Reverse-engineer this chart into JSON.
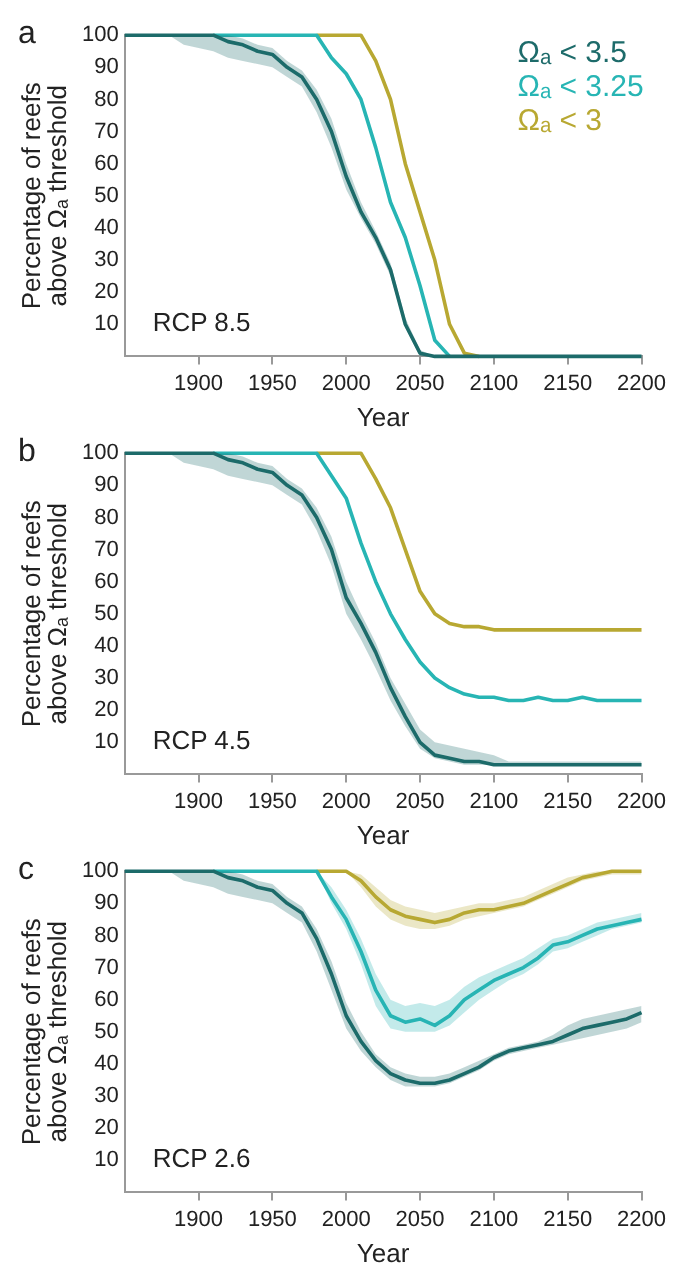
{
  "chart_data": [
    {
      "type": "line",
      "xlabel": "Year",
      "ylabel": "Percentage of reefs\nabove Ωₐ threshold",
      "annotations": [
        "a",
        "RCP 8.5"
      ],
      "legend": "top right",
      "grid": false,
      "xlim": [
        1850,
        2200
      ],
      "xticks": [
        1900,
        1950,
        2000,
        2050,
        2100,
        2150,
        2200
      ],
      "ylim": [
        0,
        100
      ],
      "yticks": [
        10,
        20,
        30,
        40,
        50,
        60,
        70,
        80,
        90,
        100
      ],
      "x": [
        1850,
        1860,
        1870,
        1880,
        1890,
        1900,
        1910,
        1920,
        1930,
        1940,
        1950,
        1960,
        1970,
        1980,
        1990,
        2000,
        2010,
        2020,
        2030,
        2040,
        2050,
        2060,
        2070,
        2080,
        2090,
        2100,
        2110,
        2120,
        2130,
        2140,
        2150,
        2160,
        2170,
        2180,
        2190,
        2200
      ],
      "series": [
        {
          "name": "Ωₐ < 3.5",
          "color": "#1d6b6a",
          "values": [
            100,
            100,
            100,
            100,
            100,
            100,
            100,
            98,
            97,
            95,
            94,
            90,
            87,
            80,
            70,
            56,
            45,
            37,
            27,
            10,
            1,
            0,
            0,
            0,
            0,
            0,
            0,
            0,
            0,
            0,
            0,
            0,
            0,
            0,
            0,
            0
          ],
          "lower": [
            100,
            100,
            100,
            100,
            97,
            96,
            95,
            93,
            92,
            91,
            90,
            87,
            84,
            76,
            65,
            52,
            43,
            35,
            25,
            9,
            0,
            0,
            0,
            0,
            0,
            0,
            0,
            0,
            0,
            0,
            0,
            0,
            0,
            0,
            0,
            0
          ],
          "upper": [
            100,
            100,
            100,
            100,
            100,
            100,
            100,
            100,
            99,
            97,
            96,
            92,
            89,
            83,
            74,
            60,
            48,
            39,
            29,
            12,
            2,
            0,
            0,
            0,
            0,
            0,
            0,
            0,
            0,
            0,
            0,
            0,
            0,
            0,
            0,
            0
          ]
        },
        {
          "name": "Ωₐ < 3.25",
          "color": "#27b5b4",
          "values": [
            null,
            null,
            null,
            null,
            null,
            null,
            100,
            100,
            100,
            100,
            100,
            100,
            100,
            100,
            93,
            88,
            80,
            65,
            48,
            37,
            22,
            5,
            0,
            null,
            null,
            null,
            null,
            null,
            null,
            null,
            null,
            null,
            null,
            null,
            null,
            null
          ]
        },
        {
          "name": "Ωₐ < 3",
          "color": "#b8a832",
          "values": [
            null,
            null,
            null,
            null,
            null,
            null,
            null,
            null,
            null,
            null,
            null,
            null,
            null,
            100,
            100,
            100,
            100,
            92,
            80,
            60,
            45,
            30,
            10,
            1,
            0,
            null,
            null,
            null,
            null,
            null,
            null,
            null,
            null,
            null,
            null,
            null
          ]
        }
      ]
    },
    {
      "type": "line",
      "xlabel": "Year",
      "ylabel": "Percentage of reefs\nabove Ωₐ threshold",
      "annotations": [
        "b",
        "RCP 4.5"
      ],
      "grid": false,
      "xlim": [
        1850,
        2200
      ],
      "xticks": [
        1900,
        1950,
        2000,
        2050,
        2100,
        2150,
        2200
      ],
      "ylim": [
        0,
        100
      ],
      "yticks": [
        10,
        20,
        30,
        40,
        50,
        60,
        70,
        80,
        90,
        100
      ],
      "x": [
        1850,
        1860,
        1870,
        1880,
        1890,
        1900,
        1910,
        1920,
        1930,
        1940,
        1950,
        1960,
        1970,
        1980,
        1990,
        2000,
        2010,
        2020,
        2030,
        2040,
        2050,
        2060,
        2070,
        2080,
        2090,
        2100,
        2110,
        2120,
        2130,
        2140,
        2150,
        2160,
        2170,
        2180,
        2190,
        2200
      ],
      "series": [
        {
          "color": "#1d6b6a",
          "values": [
            100,
            100,
            100,
            100,
            100,
            100,
            100,
            98,
            97,
            95,
            94,
            90,
            87,
            80,
            70,
            55,
            47,
            38,
            27,
            18,
            10,
            6,
            5,
            4,
            4,
            3,
            3,
            3,
            3,
            3,
            3,
            3,
            3,
            3,
            3,
            3
          ],
          "lower": [
            100,
            100,
            100,
            100,
            97,
            96,
            95,
            93,
            92,
            91,
            90,
            87,
            84,
            76,
            65,
            50,
            42,
            33,
            23,
            15,
            8,
            5,
            4,
            3,
            3,
            3,
            3,
            3,
            3,
            3,
            3,
            3,
            3,
            3,
            3,
            3
          ],
          "upper": [
            100,
            100,
            100,
            100,
            100,
            100,
            100,
            100,
            99,
            97,
            96,
            92,
            89,
            83,
            74,
            60,
            50,
            41,
            30,
            22,
            14,
            10,
            9,
            8,
            7,
            6,
            4,
            4,
            4,
            4,
            4,
            4,
            4,
            4,
            4,
            4
          ]
        },
        {
          "color": "#27b5b4",
          "values": [
            null,
            null,
            null,
            null,
            null,
            null,
            100,
            100,
            100,
            100,
            100,
            100,
            100,
            100,
            93,
            86,
            72,
            60,
            50,
            42,
            35,
            30,
            27,
            25,
            24,
            24,
            23,
            23,
            24,
            23,
            23,
            24,
            23,
            23,
            23,
            23
          ]
        },
        {
          "color": "#b8a832",
          "values": [
            null,
            null,
            null,
            null,
            null,
            null,
            null,
            null,
            null,
            null,
            null,
            null,
            null,
            100,
            100,
            100,
            100,
            92,
            83,
            70,
            57,
            50,
            47,
            46,
            46,
            45,
            45,
            45,
            45,
            45,
            45,
            45,
            45,
            45,
            45,
            45
          ]
        }
      ]
    },
    {
      "type": "line",
      "xlabel": "Year",
      "ylabel": "Percentage of reefs\nabove Ωₐ threshold",
      "annotations": [
        "c",
        "RCP 2.6"
      ],
      "grid": false,
      "xlim": [
        1850,
        2200
      ],
      "xticks": [
        1900,
        1950,
        2000,
        2050,
        2100,
        2150,
        2200
      ],
      "ylim": [
        0,
        100
      ],
      "yticks": [
        10,
        20,
        30,
        40,
        50,
        60,
        70,
        80,
        90,
        100
      ],
      "x": [
        1850,
        1860,
        1870,
        1880,
        1890,
        1900,
        1910,
        1920,
        1930,
        1940,
        1950,
        1960,
        1970,
        1980,
        1990,
        2000,
        2010,
        2020,
        2030,
        2040,
        2050,
        2060,
        2070,
        2080,
        2090,
        2100,
        2110,
        2120,
        2130,
        2140,
        2150,
        2160,
        2170,
        2180,
        2190,
        2200
      ],
      "series": [
        {
          "color": "#1d6b6a",
          "values": [
            100,
            100,
            100,
            100,
            100,
            100,
            100,
            98,
            97,
            95,
            94,
            90,
            87,
            79,
            68,
            55,
            47,
            41,
            37,
            35,
            34,
            34,
            35,
            37,
            39,
            42,
            44,
            45,
            46,
            47,
            49,
            51,
            52,
            53,
            54,
            56
          ],
          "lower": [
            100,
            100,
            100,
            100,
            97,
            96,
            95,
            93,
            92,
            91,
            90,
            87,
            84,
            75,
            63,
            51,
            44,
            39,
            35,
            33,
            33,
            33,
            34,
            36,
            38,
            41,
            43,
            44,
            45,
            46,
            47,
            48,
            49,
            50,
            51,
            53
          ],
          "upper": [
            100,
            100,
            100,
            100,
            100,
            100,
            100,
            100,
            99,
            97,
            96,
            92,
            89,
            82,
            72,
            59,
            50,
            43,
            39,
            37,
            36,
            36,
            37,
            39,
            41,
            43,
            45,
            46,
            47,
            49,
            52,
            54,
            55,
            56,
            57,
            58
          ]
        },
        {
          "color": "#27b5b4",
          "values": [
            null,
            null,
            null,
            null,
            null,
            null,
            100,
            100,
            100,
            100,
            100,
            100,
            100,
            100,
            92,
            85,
            75,
            63,
            55,
            53,
            54,
            52,
            55,
            60,
            63,
            66,
            68,
            70,
            73,
            77,
            78,
            80,
            82,
            83,
            84,
            85
          ],
          "lower": [
            100,
            100,
            100,
            100,
            100,
            100,
            100,
            100,
            100,
            100,
            100,
            100,
            100,
            100,
            90,
            82,
            71,
            58,
            51,
            50,
            50,
            50,
            52,
            56,
            60,
            63,
            66,
            68,
            71,
            75,
            76,
            78,
            80,
            82,
            83,
            84
          ],
          "upper": [
            100,
            100,
            100,
            100,
            100,
            100,
            100,
            100,
            100,
            100,
            100,
            100,
            100,
            100,
            95,
            88,
            79,
            68,
            60,
            58,
            59,
            58,
            60,
            64,
            67,
            69,
            71,
            73,
            76,
            79,
            80,
            82,
            84,
            85,
            86,
            87
          ]
        },
        {
          "color": "#b8a832",
          "values": [
            null,
            null,
            null,
            null,
            null,
            null,
            null,
            null,
            null,
            null,
            null,
            null,
            null,
            100,
            100,
            100,
            97,
            92,
            88,
            86,
            85,
            84,
            85,
            87,
            88,
            88,
            89,
            90,
            92,
            94,
            96,
            98,
            99,
            100,
            100,
            100
          ],
          "lower": [
            100,
            100,
            100,
            100,
            100,
            100,
            100,
            100,
            100,
            100,
            100,
            100,
            100,
            100,
            100,
            100,
            95,
            89,
            85,
            83,
            82,
            82,
            83,
            85,
            86,
            87,
            88,
            89,
            91,
            93,
            95,
            97,
            98,
            99,
            99,
            99
          ],
          "upper": [
            100,
            100,
            100,
            100,
            100,
            100,
            100,
            100,
            100,
            100,
            100,
            100,
            100,
            100,
            100,
            100,
            99,
            95,
            91,
            89,
            88,
            87,
            88,
            89,
            90,
            90,
            91,
            92,
            94,
            96,
            98,
            99,
            100,
            100,
            100,
            100
          ]
        }
      ]
    }
  ]
}
